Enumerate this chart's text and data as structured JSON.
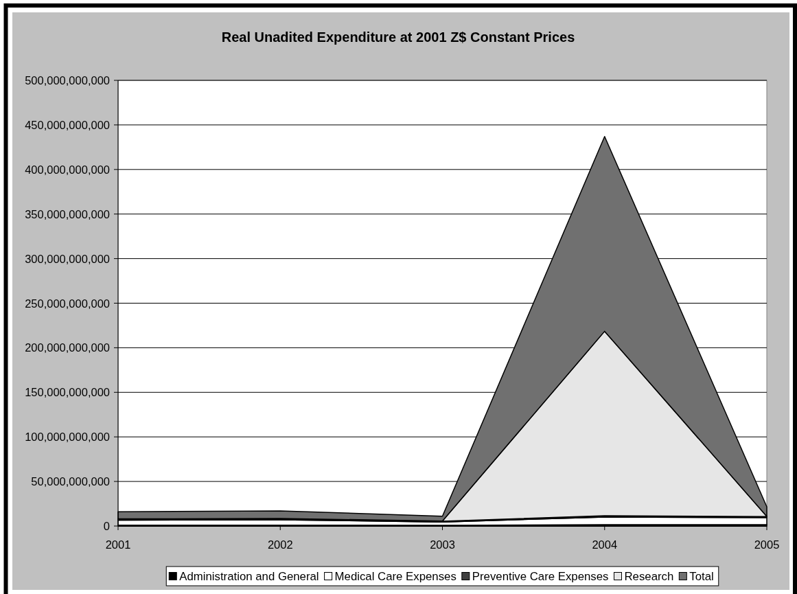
{
  "chart_data": {
    "type": "area",
    "title": "Real Unadited Expenditure at 2001 Z$ Constant Prices",
    "categories": [
      "2001",
      "2002",
      "2003",
      "2004",
      "2005"
    ],
    "series": [
      {
        "name": "Administration and General",
        "color": "#000000",
        "values": [
          1000000000,
          1000000000,
          800000000,
          1500000000,
          1500000000
        ]
      },
      {
        "name": "Medical Care Expenses",
        "color": "#ffffff",
        "values": [
          5500000000,
          6000000000,
          3700000000,
          8500000000,
          8000000000
        ]
      },
      {
        "name": "Preventive Care Expenses",
        "color": "#404040",
        "values": [
          1000000000,
          1000000000,
          800000000,
          1500000000,
          1000000000
        ]
      },
      {
        "name": "Research",
        "color": "#e6e6e6",
        "values": [
          500000000,
          500000000,
          200000000,
          207000000000,
          300000000
        ]
      },
      {
        "name": "Total",
        "color": "#707070",
        "values": [
          8000000000,
          8500000000,
          5500000000,
          218500000000,
          10800000000
        ]
      }
    ],
    "stacked": true,
    "ylim": [
      0,
      500000000000
    ],
    "yticks": [
      0,
      {
        "value": 50000000000,
        "label": "50,000,000,000"
      },
      {
        "value": 100000000000,
        "label": "100,000,000,000"
      },
      {
        "value": 150000000000,
        "label": "150,000,000,000"
      },
      {
        "value": 200000000000,
        "label": "200,000,000,000"
      },
      {
        "value": 250000000000,
        "label": "250,000,000,000"
      },
      {
        "value": 300000000000,
        "label": "300,000,000,000"
      },
      {
        "value": 350000000000,
        "label": "350,000,000,000"
      },
      {
        "value": 400000000000,
        "label": "400,000,000,000"
      },
      {
        "value": 450000000000,
        "label": "450,000,000,000"
      },
      {
        "value": 500000000000,
        "label": "500,000,000,000"
      }
    ],
    "grid": "y",
    "legend": "bottom"
  }
}
